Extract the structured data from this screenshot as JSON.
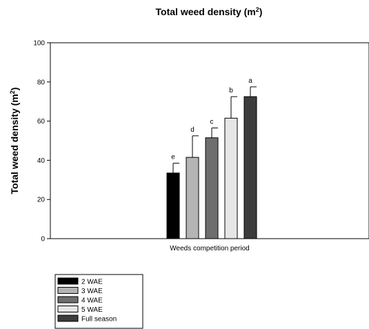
{
  "chart_data": {
    "type": "bar",
    "title": "Total weed density (m",
    "title_sup": "2",
    "title_end": ")",
    "ylabel": "Total weed density (m",
    "ylabel_sup": "2",
    "ylabel_end": ")",
    "xlabel": "Weeds competition period",
    "ylim": [
      0,
      100
    ],
    "yticks": [
      0,
      20,
      40,
      60,
      80,
      100
    ],
    "grid": false,
    "legend_position": "bottom-left",
    "series": [
      {
        "name": "2 WAE",
        "value": 33.5,
        "error": 5,
        "letter": "e",
        "color": "#000000"
      },
      {
        "name": "3 WAE",
        "value": 41.5,
        "error": 11,
        "letter": "d",
        "color": "#b4b4b4"
      },
      {
        "name": "4 WAE",
        "value": 51.5,
        "error": 5,
        "letter": "c",
        "color": "#6e6e6e"
      },
      {
        "name": "5 WAE",
        "value": 61.5,
        "error": 11,
        "letter": "b",
        "color": "#e6e6e6"
      },
      {
        "name": "Full season",
        "value": 72.5,
        "error": 5,
        "letter": "a",
        "color": "#3c3c3c"
      }
    ]
  }
}
